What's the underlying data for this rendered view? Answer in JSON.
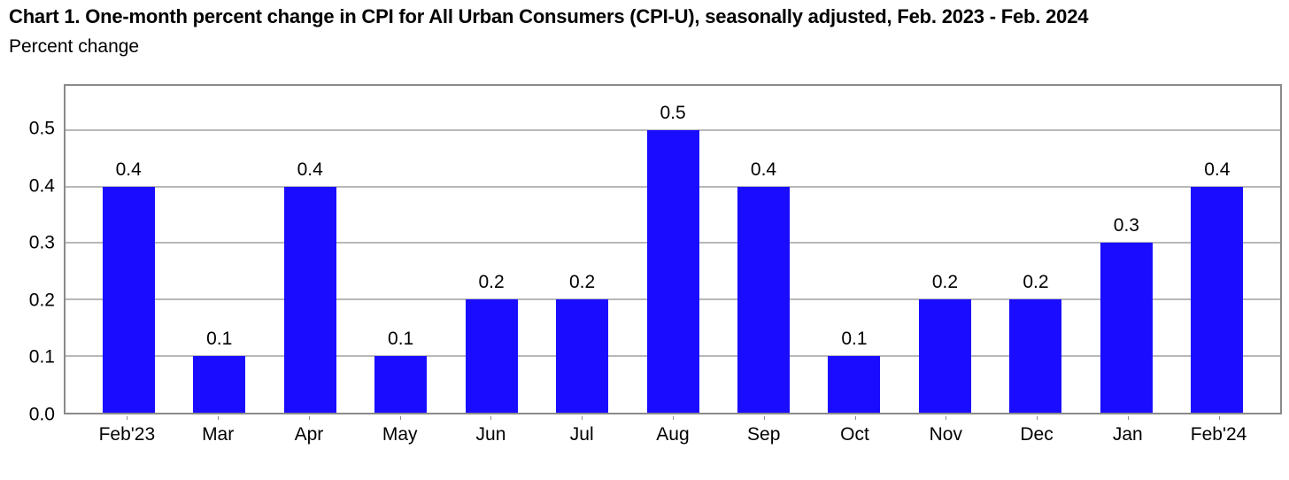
{
  "title": "Chart 1. One-month percent change in CPI for All Urban Consumers (CPI-U), seasonally adjusted, Feb. 2023 - Feb. 2024",
  "subtitle": "Percent change",
  "chart_data": {
    "type": "bar",
    "title": "Chart 1. One-month percent change in CPI for All Urban Consumers (CPI-U), seasonally adjusted, Feb. 2023 - Feb. 2024",
    "ylabel": "Percent change",
    "xlabel": "",
    "categories": [
      "Feb'23",
      "Mar",
      "Apr",
      "May",
      "Jun",
      "Jul",
      "Aug",
      "Sep",
      "Oct",
      "Nov",
      "Dec",
      "Jan",
      "Feb'24"
    ],
    "values": [
      0.4,
      0.1,
      0.4,
      0.1,
      0.2,
      0.2,
      0.5,
      0.4,
      0.1,
      0.2,
      0.2,
      0.3,
      0.4
    ],
    "data_labels": [
      "0.4",
      "0.1",
      "0.4",
      "0.1",
      "0.2",
      "0.2",
      "0.5",
      "0.4",
      "0.1",
      "0.2",
      "0.2",
      "0.3",
      "0.4"
    ],
    "yticks": [
      0.0,
      0.1,
      0.2,
      0.3,
      0.4,
      0.5
    ],
    "ytick_labels": [
      "0.0",
      "0.1",
      "0.2",
      "0.3",
      "0.4",
      "0.5"
    ],
    "ylim": [
      0,
      0.578
    ],
    "grid": true,
    "legend_position": "none",
    "colors": {
      "bar": "#1a0dff",
      "gridline": "#b8b8b8",
      "axis_border": "#8a8a8a",
      "text": "#000000"
    }
  }
}
